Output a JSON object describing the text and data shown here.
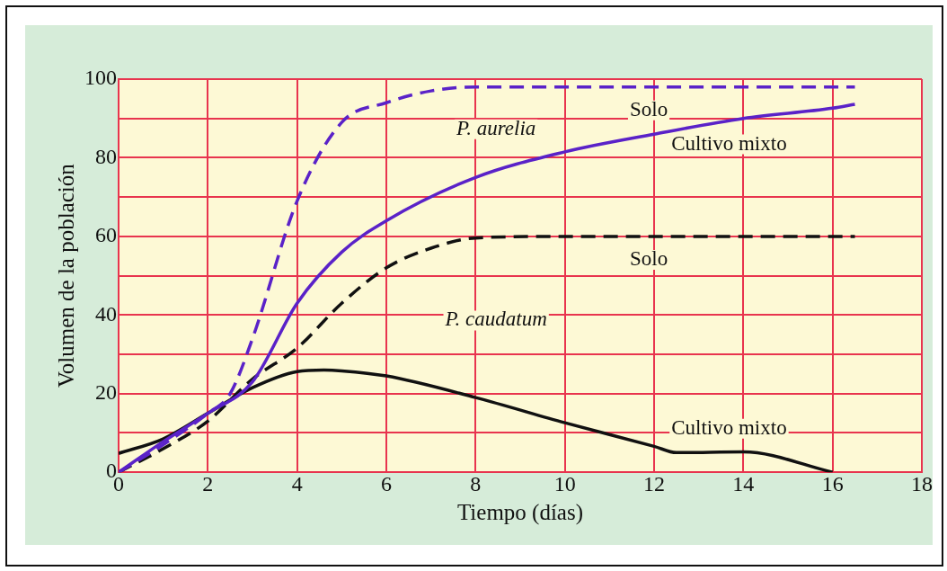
{
  "chart_data": {
    "type": "line",
    "xlabel": "Tiempo (días)",
    "ylabel": "Volumen de la población",
    "xlim": [
      0,
      18
    ],
    "xticks": [
      0,
      2,
      4,
      6,
      8,
      10,
      12,
      14,
      16,
      18
    ],
    "ylim": [
      0,
      100
    ],
    "yticks": [
      0,
      {
        "value": 10,
        "label": null
      },
      20,
      {
        "value": 30,
        "label": null
      },
      40,
      {
        "value": 50,
        "label": null
      },
      60,
      {
        "value": 70,
        "label": null
      },
      80,
      {
        "value": 90,
        "label": null
      },
      100
    ],
    "grid": true,
    "legend": false,
    "marker": "none",
    "series": [
      {
        "name": "Solo",
        "color": "#5a22c8",
        "line_style": "dashed",
        "x": [
          0,
          1,
          2,
          2.5,
          3,
          4,
          5,
          6,
          7,
          8,
          10,
          12,
          14,
          16.5
        ],
        "values": [
          0,
          7,
          15,
          20,
          34,
          69,
          89,
          94,
          97,
          98,
          98,
          98,
          98,
          98
        ]
      },
      {
        "name": "Cultivo mixto",
        "color": "#5a22c8",
        "line_style": "solid",
        "x": [
          0,
          1,
          2,
          3,
          4,
          5,
          6,
          8,
          10,
          12,
          14,
          16,
          16.5
        ],
        "values": [
          0,
          7.8,
          15,
          23,
          43,
          56,
          64,
          75,
          81.5,
          86,
          90,
          92.6,
          93.6
        ]
      },
      {
        "name": "Solo",
        "color": "#111111",
        "line_style": "dashed",
        "x": [
          0,
          1,
          2,
          3,
          4,
          5,
          6,
          7,
          8,
          10,
          12,
          14,
          16.5
        ],
        "values": [
          0,
          6,
          13,
          23.7,
          31.6,
          43,
          52,
          57,
          59.6,
          60,
          60,
          60,
          60
        ]
      },
      {
        "name": "Cultivo mixto",
        "color": "#111111",
        "line_style": "solid",
        "x": [
          0,
          1,
          2,
          3,
          4,
          4.6,
          5,
          6,
          8,
          10,
          12,
          12.5,
          14,
          16
        ],
        "values": [
          4.8,
          8.5,
          15,
          21.5,
          25.6,
          26,
          25.8,
          24.5,
          19,
          12.6,
          6.6,
          5,
          5.2,
          0
        ]
      }
    ],
    "annotations": [
      "P. aurelia",
      "P. caudatum"
    ]
  }
}
